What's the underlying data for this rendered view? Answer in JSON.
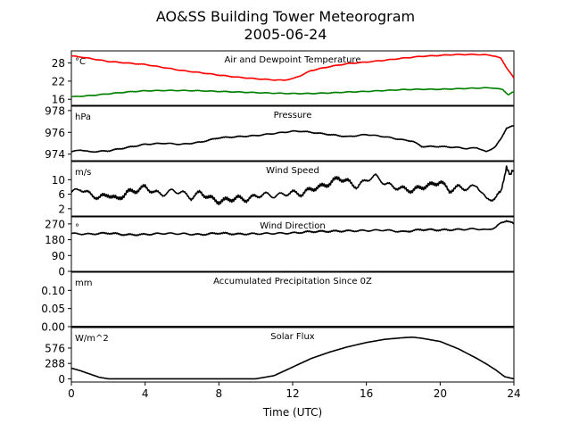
{
  "page": {
    "title": "AO&SS Building Tower Meteorogram",
    "subtitle": "2005-06-24",
    "xlabel": "Time (UTC)"
  },
  "chart_data": {
    "type": "line",
    "x_ticks": [
      0,
      4,
      8,
      12,
      16,
      20,
      24
    ],
    "x_range": [
      0,
      24
    ],
    "grid": false,
    "panels": [
      {
        "id": "temp",
        "title": "Air and Dewpoint Temperature",
        "unit": "°C",
        "ylim": [
          14,
          32
        ],
        "yticks": [
          16,
          22,
          28
        ],
        "series": [
          {
            "key": "air",
            "color": "#ff0000",
            "x": [
              0,
              0.5,
              1,
              2,
              3,
              4,
              5,
              6,
              7,
              8,
              9,
              10,
              11,
              11.5,
              12,
              12.5,
              13,
              14,
              15,
              16,
              17,
              18,
              19,
              20,
              20.5,
              21,
              22,
              22.7,
              23,
              23.3,
              23.6,
              24
            ],
            "y": [
              30.3,
              30.0,
              29.5,
              28.5,
              28.0,
              27.5,
              26.5,
              25.5,
              24.8,
              24.0,
              23.3,
              22.8,
              22.4,
              22.3,
              22.8,
              24.0,
              25.5,
              26.8,
              27.8,
              28.3,
              28.9,
              29.6,
              30.2,
              30.5,
              30.7,
              30.8,
              30.8,
              30.6,
              30.2,
              29.5,
              26.5,
              23.0
            ]
          },
          {
            "key": "dewpoint",
            "color": "#008000",
            "x": [
              0,
              1,
              2,
              3,
              4,
              5,
              6,
              7,
              8,
              9,
              10,
              11,
              12,
              13,
              14,
              15,
              16,
              17,
              18,
              19,
              20,
              21,
              22,
              22.8,
              23,
              23.4,
              23.7,
              24
            ],
            "y": [
              16.8,
              17.2,
              17.8,
              18.4,
              18.8,
              18.9,
              18.9,
              18.8,
              18.6,
              18.4,
              18.2,
              18.0,
              17.9,
              17.9,
              18.1,
              18.4,
              18.6,
              18.9,
              19.2,
              19.3,
              19.3,
              19.5,
              19.7,
              19.8,
              19.6,
              19.2,
              17.5,
              18.5
            ]
          }
        ]
      },
      {
        "id": "pressure",
        "title": "Pressure",
        "unit": "hPa",
        "ylim": [
          973.4,
          978.4
        ],
        "yticks": [
          974,
          976,
          978
        ],
        "series": [
          {
            "key": "pressure",
            "color": "#000000",
            "x": [
              0,
              0.5,
              1,
              2,
              3,
              4,
              5,
              6,
              7,
              8,
              9,
              10,
              11,
              12,
              12.5,
              13,
              14,
              15,
              16,
              17,
              18,
              18.5,
              19,
              20,
              21,
              21.5,
              22,
              22.5,
              23,
              23.3,
              23.6,
              24
            ],
            "y": [
              974.2,
              974.4,
              974.2,
              974.3,
              974.6,
              974.9,
              975.0,
              974.9,
              975.1,
              975.5,
              975.6,
              975.7,
              975.9,
              976.1,
              976.1,
              976.0,
              975.8,
              975.6,
              975.8,
              975.6,
              975.3,
              975.2,
              974.7,
              974.7,
              974.6,
              974.5,
              974.6,
              974.2,
              974.7,
              975.4,
              976.4,
              976.6
            ]
          }
        ]
      },
      {
        "id": "wind_speed",
        "title": "Wind Speed",
        "unit": "m/s",
        "ylim": [
          0,
          15
        ],
        "yticks": [
          2,
          6,
          10
        ],
        "series": [
          {
            "key": "wind_speed",
            "color": "#000000",
            "x": [
              0,
              0.5,
              1,
              1.5,
              2,
              2.5,
              3,
              3.5,
              4,
              4.5,
              5,
              5.5,
              6,
              6.5,
              7,
              7.5,
              8,
              8.5,
              9,
              9.5,
              10,
              10.5,
              11,
              11.5,
              12,
              12.5,
              13,
              13.5,
              14,
              14.5,
              15,
              15.5,
              16,
              16.5,
              17,
              17.5,
              18,
              18.5,
              19,
              19.5,
              20,
              20.5,
              21,
              21.5,
              22,
              22.5,
              23,
              23.3,
              23.6,
              23.8,
              24
            ],
            "y": [
              6.5,
              7.5,
              6.0,
              5.0,
              6.0,
              4.5,
              6.5,
              7.0,
              8.0,
              6.5,
              6.0,
              7.0,
              6.5,
              5.0,
              6.5,
              5.0,
              4.0,
              4.5,
              5.0,
              4.5,
              5.5,
              6.0,
              5.5,
              6.0,
              6.5,
              6.0,
              7.5,
              8.0,
              9.0,
              10.5,
              9.5,
              8.0,
              10.0,
              11.0,
              9.0,
              8.0,
              7.5,
              7.0,
              8.0,
              8.5,
              9.5,
              7.0,
              8.0,
              7.5,
              8.5,
              4.5,
              5.0,
              6.5,
              14.0,
              11.0,
              12.5
            ]
          }
        ]
      },
      {
        "id": "wind_dir",
        "title": "Wind Direction",
        "unit": "°",
        "ylim": [
          0,
          310
        ],
        "yticks": [
          0,
          90,
          180,
          270
        ],
        "series": [
          {
            "key": "wind_dir",
            "color": "#000000",
            "x": [
              0,
              1,
              2,
              3,
              4,
              5,
              6,
              7,
              8,
              9,
              10,
              11,
              12,
              13,
              14,
              15,
              16,
              17,
              18,
              19,
              20,
              21,
              22,
              22.5,
              23,
              23.3,
              23.6,
              24
            ],
            "y": [
              215,
              212,
              218,
              208,
              210,
              216,
              214,
              209,
              218,
              212,
              214,
              216,
              218,
              226,
              228,
              230,
              232,
              235,
              225,
              238,
              235,
              238,
              242,
              235,
              250,
              275,
              290,
              270
            ]
          }
        ]
      },
      {
        "id": "precip",
        "title": "Accumulated Precipitation Since 0Z",
        "unit": "mm",
        "ylim": [
          0,
          0.15
        ],
        "yticks": [
          0.0,
          0.05,
          0.1
        ],
        "ytick_labels": [
          "0.00",
          "0.05",
          "0.10"
        ],
        "series": [
          {
            "key": "precip",
            "color": "#000000",
            "x": [
              0,
              24
            ],
            "y": [
              0.0,
              0.0
            ]
          }
        ]
      },
      {
        "id": "solar",
        "title": "Solar Flux",
        "unit": "W/m^2",
        "ylim": [
          -60,
          960
        ],
        "yticks": [
          0,
          288,
          576
        ],
        "series": [
          {
            "key": "solar",
            "color": "#000000",
            "x": [
              0,
              0.5,
              1,
              1.5,
              2,
              3,
              10,
              11,
              12,
              13,
              14,
              15,
              16,
              17,
              18,
              18.5,
              19,
              20,
              20.5,
              21,
              21.5,
              22,
              22.5,
              23,
              23.5,
              24
            ],
            "y": [
              200,
              150,
              90,
              30,
              0,
              0,
              0,
              60,
              220,
              380,
              500,
              600,
              680,
              740,
              770,
              780,
              760,
              700,
              630,
              560,
              470,
              380,
              280,
              170,
              40,
              0
            ]
          }
        ]
      }
    ]
  }
}
